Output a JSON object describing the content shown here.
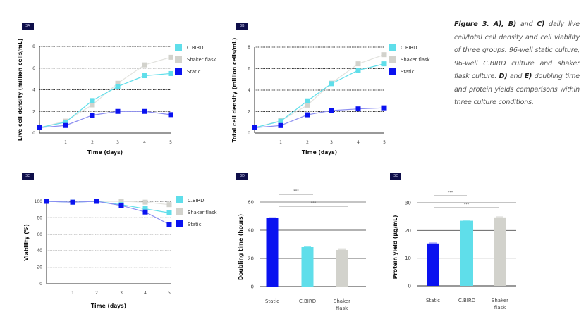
{
  "panel_labels": [
    "3A",
    "3B",
    "3C",
    "3D",
    "3E"
  ],
  "caption": {
    "parts": [
      {
        "text": "Figure 3. A), B)",
        "bold": true
      },
      {
        "text": " and ",
        "bold": false
      },
      {
        "text": "C)",
        "bold": true
      },
      {
        "text": " daily live cell/total cell density and cell viability of three groups: 96-well static culture, 96-well C.BIRD culture and shaker flask culture. ",
        "bold": false
      },
      {
        "text": "D)",
        "bold": true
      },
      {
        "text": " and ",
        "bold": false
      },
      {
        "text": "E)",
        "bold": true
      },
      {
        "text": " doubling time and protein yields comparisons within three culture conditions.",
        "bold": false
      }
    ]
  },
  "colors": {
    "cbird": "#5fdeea",
    "shaker": "#d2d2cc",
    "static": "#0a12f0",
    "static_line": "#8a8cf0",
    "badge": "#0e0e4a"
  },
  "legend": [
    "C.BIRD",
    "Shaker flask",
    "Static"
  ],
  "chart_data": [
    {
      "id": "3A",
      "type": "line",
      "title": "",
      "xlabel": "Time (days)",
      "ylabel": "Live cell density (million cells/mL)",
      "x": [
        0,
        1,
        2,
        3,
        4,
        5
      ],
      "xticks": [
        "1",
        "2",
        "3",
        "4",
        "5"
      ],
      "yticks": [
        "0",
        "2",
        "4",
        "6",
        "8"
      ],
      "ylim": [
        0,
        8
      ],
      "grid": "dotted horizontal",
      "legend_position": "right",
      "series": [
        {
          "name": "C.BIRD",
          "values": [
            0.5,
            1.0,
            3.0,
            4.3,
            5.3,
            5.5
          ]
        },
        {
          "name": "Shaker flask",
          "values": [
            0.5,
            1.1,
            2.6,
            4.6,
            6.3,
            7.0
          ]
        },
        {
          "name": "Static",
          "values": [
            0.5,
            0.7,
            1.65,
            2.0,
            2.0,
            1.7
          ]
        }
      ]
    },
    {
      "id": "3B",
      "type": "line",
      "title": "",
      "xlabel": "Time (days)",
      "ylabel": "Total cell density (million cells/mL)",
      "x": [
        0,
        1,
        2,
        3,
        4,
        5
      ],
      "xticks": [
        "1",
        "2",
        "3",
        "4",
        "5"
      ],
      "yticks": [
        "0",
        "2",
        "4",
        "6",
        "8"
      ],
      "ylim": [
        0,
        8
      ],
      "grid": "dotted horizontal",
      "legend_position": "right",
      "series": [
        {
          "name": "C.BIRD",
          "values": [
            0.5,
            1.1,
            3.0,
            4.6,
            5.85,
            6.45
          ]
        },
        {
          "name": "Shaker flask",
          "values": [
            0.5,
            1.15,
            2.6,
            4.65,
            6.45,
            7.3
          ]
        },
        {
          "name": "Static",
          "values": [
            0.5,
            0.7,
            1.7,
            2.1,
            2.25,
            2.35
          ]
        }
      ]
    },
    {
      "id": "3C",
      "type": "line",
      "title": "",
      "xlabel": "Time (days)",
      "ylabel": "Viability (%)",
      "x": [
        0,
        1,
        2,
        3,
        4,
        5
      ],
      "xticks": [
        "1",
        "2",
        "3",
        "4",
        "5"
      ],
      "yticks": [
        "0",
        "20",
        "40",
        "60",
        "80",
        "100"
      ],
      "ylim": [
        0,
        100
      ],
      "grid": "dotted horizontal",
      "legend_position": "right",
      "series": [
        {
          "name": "C.BIRD",
          "values": [
            100,
            99,
            100,
            96,
            91,
            86
          ]
        },
        {
          "name": "Shaker flask",
          "values": [
            100,
            99,
            100,
            100,
            99,
            96
          ]
        },
        {
          "name": "Static",
          "values": [
            100,
            99,
            100,
            95,
            87,
            72
          ]
        }
      ]
    },
    {
      "id": "3D",
      "type": "bar",
      "title": "",
      "xlabel": "",
      "ylabel": "Doubling time (hours)",
      "categories": [
        "Static",
        "C.BIRD",
        "Shaker flask"
      ],
      "values": [
        48.5,
        28,
        26
      ],
      "yticks": [
        "0",
        "20",
        "40",
        "60"
      ],
      "ylim": [
        0,
        60
      ],
      "grid": "solid horizontal",
      "significance": [
        {
          "from": "Static",
          "to": "C.BIRD",
          "label": "***"
        },
        {
          "from": "Static",
          "to": "Shaker flask",
          "label": "***"
        }
      ]
    },
    {
      "id": "3E",
      "type": "bar",
      "title": "",
      "xlabel": "",
      "ylabel": "Protein yield (µg/mL)",
      "categories": [
        "Static",
        "C.BIRD",
        "Shaker flask"
      ],
      "values": [
        15.3,
        23.5,
        24.7
      ],
      "yticks": [
        "0",
        "10",
        "20",
        "30"
      ],
      "ylim": [
        0,
        30
      ],
      "grid": "solid horizontal",
      "significance": [
        {
          "from": "Static",
          "to": "C.BIRD",
          "label": "***"
        },
        {
          "from": "Static",
          "to": "Shaker flask",
          "label": "***"
        }
      ]
    }
  ]
}
